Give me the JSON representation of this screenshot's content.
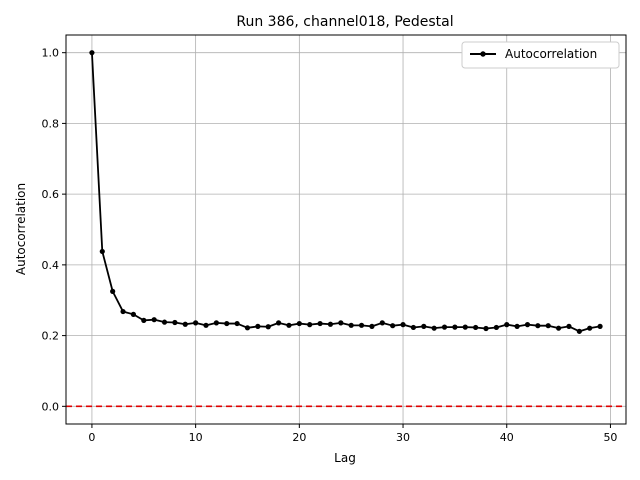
{
  "chart_data": {
    "type": "line",
    "title": "Run 386, channel018, Pedestal",
    "xlabel": "Lag",
    "ylabel": "Autocorrelation",
    "xlim": [
      -2.5,
      51.5
    ],
    "ylim": [
      -0.05,
      1.05
    ],
    "xticks": [
      0,
      10,
      20,
      30,
      40,
      50
    ],
    "yticks": [
      0.0,
      0.2,
      0.4,
      0.6,
      0.8,
      1.0
    ],
    "grid": true,
    "legend_position": "top-right",
    "series": [
      {
        "name": "Autocorrelation",
        "color": "#000000",
        "marker": "circle",
        "x": [
          0,
          1,
          2,
          3,
          4,
          5,
          6,
          7,
          8,
          9,
          10,
          11,
          12,
          13,
          14,
          15,
          16,
          17,
          18,
          19,
          20,
          21,
          22,
          23,
          24,
          25,
          26,
          27,
          28,
          29,
          30,
          31,
          32,
          33,
          34,
          35,
          36,
          37,
          38,
          39,
          40,
          41,
          42,
          43,
          44,
          45,
          46,
          47,
          48,
          49
        ],
        "values": [
          1.0,
          0.438,
          0.325,
          0.268,
          0.26,
          0.243,
          0.245,
          0.238,
          0.237,
          0.232,
          0.236,
          0.229,
          0.236,
          0.234,
          0.234,
          0.222,
          0.226,
          0.225,
          0.236,
          0.229,
          0.234,
          0.231,
          0.234,
          0.232,
          0.236,
          0.229,
          0.229,
          0.226,
          0.236,
          0.228,
          0.231,
          0.223,
          0.226,
          0.221,
          0.224,
          0.224,
          0.224,
          0.223,
          0.22,
          0.223,
          0.231,
          0.226,
          0.231,
          0.228,
          0.228,
          0.221,
          0.226,
          0.212,
          0.221,
          0.226
        ]
      }
    ],
    "reference_line": {
      "y": 0.0,
      "color": "#e00000",
      "style": "dashed"
    }
  }
}
